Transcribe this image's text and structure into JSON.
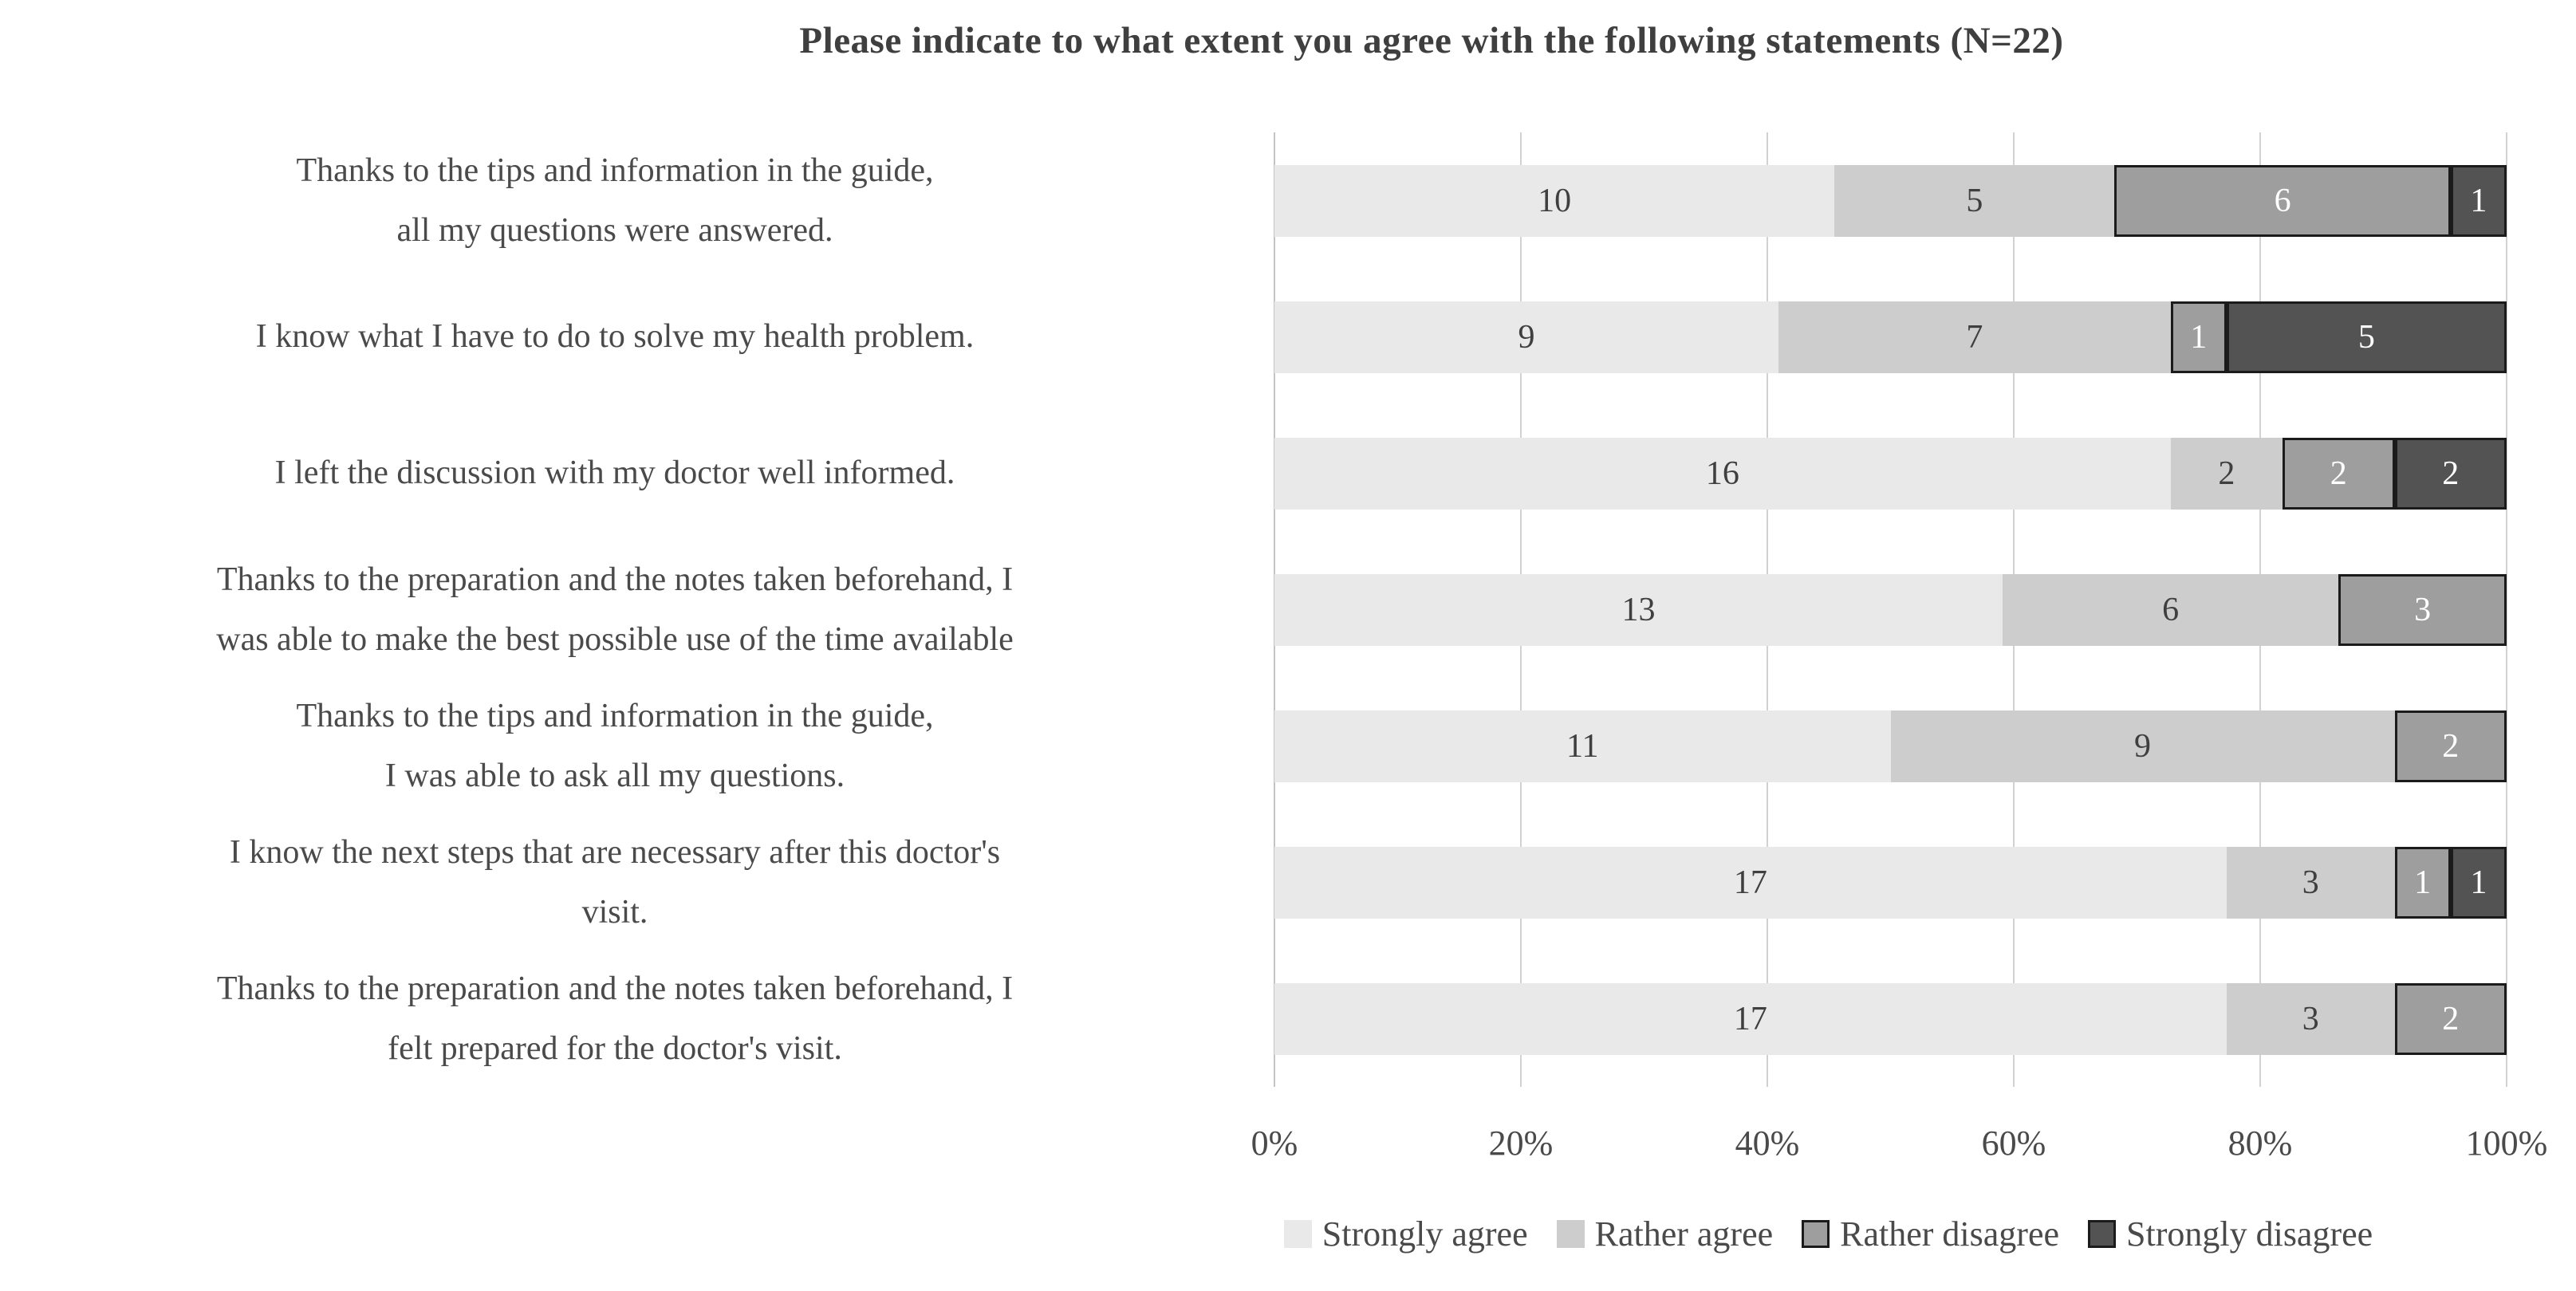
{
  "chart_data": {
    "type": "bar",
    "orientation": "horizontal",
    "stacked": true,
    "unit": "respondents",
    "n": 22,
    "title": "Please indicate to what extent you agree with the following statements (N=22)",
    "categories": [
      "Thanks to the tips and information in the guide,\nall my questions were answered.",
      "I know what I have to do to solve my health problem.",
      "I left the discussion with my doctor well informed.",
      "Thanks to the preparation and the notes taken beforehand, I\nwas able to make the best possible use of the time available",
      "Thanks to the tips and information in the guide,\nI was able to ask all my questions.",
      "I know the next steps that are necessary after this doctor's\nvisit.",
      "Thanks to the preparation and the notes taken beforehand, I\nfelt prepared for the doctor's visit."
    ],
    "series": [
      {
        "name": "Strongly agree",
        "values": [
          10,
          9,
          16,
          13,
          11,
          17,
          17
        ],
        "color": "#e9e9e9",
        "label_color": "#3f3f3f",
        "bordered": false
      },
      {
        "name": "Rather agree",
        "values": [
          5,
          7,
          2,
          6,
          9,
          3,
          3
        ],
        "color": "#cdcdcd",
        "label_color": "#3f3f3f",
        "bordered": false
      },
      {
        "name": "Rather disagree",
        "values": [
          6,
          1,
          2,
          3,
          2,
          1,
          2
        ],
        "color": "#9e9e9e",
        "label_color": "#ffffff",
        "bordered": true
      },
      {
        "name": "Strongly disagree",
        "values": [
          1,
          5,
          2,
          0,
          0,
          1,
          0
        ],
        "color": "#535353",
        "label_color": "#ffffff",
        "bordered": true
      }
    ],
    "x_ticks": [
      "0%",
      "20%",
      "40%",
      "60%",
      "80%",
      "100%"
    ],
    "xlim": [
      0,
      100
    ],
    "grid": true,
    "legend_position": "bottom"
  },
  "colors": {
    "gridline": "#d2d2d2",
    "axis_line": "#c4c4c4",
    "segment_border": "#1b1b1b",
    "text": "#4a4a4a",
    "background": "#ffffff"
  }
}
